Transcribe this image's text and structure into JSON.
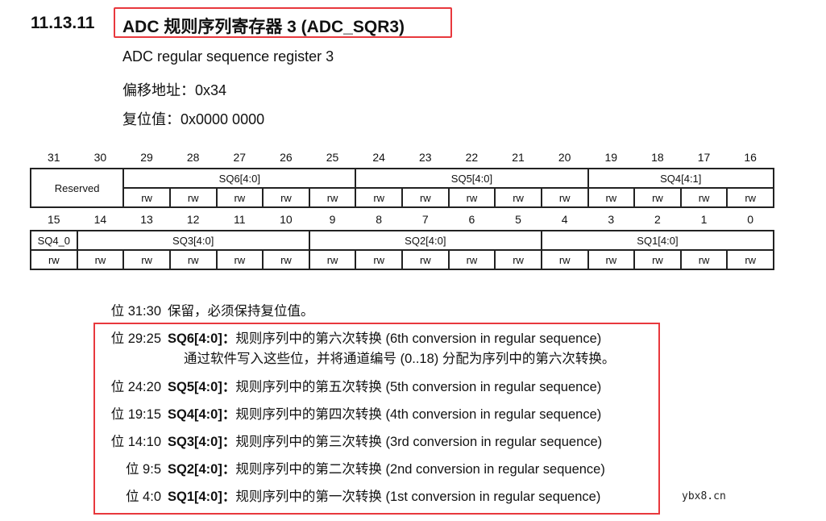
{
  "section": {
    "number": "11.13.11",
    "title": "ADC 规则序列寄存器 3 (ADC_SQR3)",
    "subtitle": "ADC regular sequence register 3",
    "offset": "偏移地址：0x34",
    "reset": "复位值：0x0000 0000"
  },
  "register": {
    "upper_bits": [
      "31",
      "30",
      "29",
      "28",
      "27",
      "26",
      "25",
      "24",
      "23",
      "22",
      "21",
      "20",
      "19",
      "18",
      "17",
      "16"
    ],
    "upper_fields": [
      {
        "name": "Reserved",
        "span": 2
      },
      {
        "name": "SQ6[4:0]",
        "span": 5
      },
      {
        "name": "SQ5[4:0]",
        "span": 5
      },
      {
        "name": "SQ4[4:1]",
        "span": 4
      }
    ],
    "lower_bits": [
      "15",
      "14",
      "13",
      "12",
      "11",
      "10",
      "9",
      "8",
      "7",
      "6",
      "5",
      "4",
      "3",
      "2",
      "1",
      "0"
    ],
    "lower_fields": [
      {
        "name": "SQ4_0",
        "span": 1
      },
      {
        "name": "SQ3[4:0]",
        "span": 5
      },
      {
        "name": "SQ2[4:0]",
        "span": 5
      },
      {
        "name": "SQ1[4:0]",
        "span": 5
      }
    ],
    "access": "rw"
  },
  "descriptions": [
    {
      "bits": "位 31:30",
      "field": "",
      "text": "保留，必须保持复位值。"
    },
    {
      "bits": "位 29:25",
      "field": "SQ6[4:0]：",
      "text": "规则序列中的第六次转换 (6th conversion in regular sequence)",
      "extra": "通过软件写入这些位，并将通道编号 (0..18) 分配为序列中的第六次转换。"
    },
    {
      "bits": "位 24:20",
      "field": "SQ5[4:0]：",
      "text": "规则序列中的第五次转换 (5th conversion in regular sequence)"
    },
    {
      "bits": "位 19:15",
      "field": "SQ4[4:0]：",
      "text": "规则序列中的第四次转换 (4th conversion in regular sequence)"
    },
    {
      "bits": "位 14:10",
      "field": "SQ3[4:0]：",
      "text": "规则序列中的第三次转换 (3rd conversion in regular sequence)"
    },
    {
      "bits": "位 9:5",
      "field": "SQ2[4:0]：",
      "text": "规则序列中的第二次转换 (2nd conversion in regular sequence)"
    },
    {
      "bits": "位 4:0",
      "field": "SQ1[4:0]：",
      "text": "规则序列中的第一次转换 (1st conversion in regular sequence)"
    }
  ],
  "watermark": "ybx8.cn",
  "colors": {
    "highlight": "#e8383d"
  }
}
